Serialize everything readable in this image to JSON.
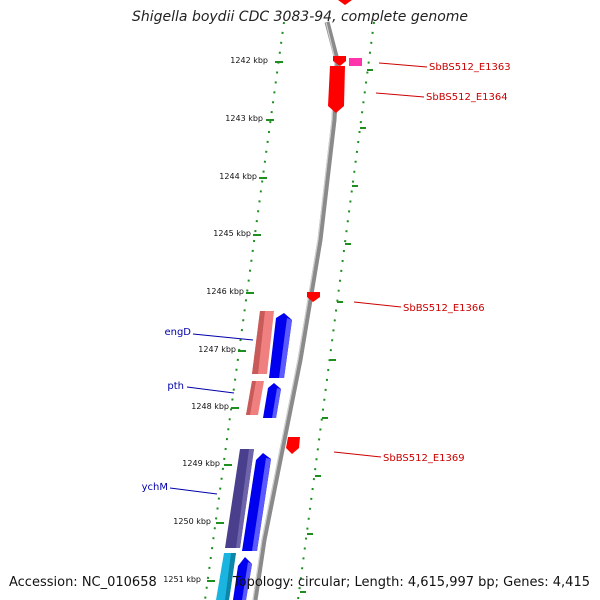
{
  "title": "Shigella boydii CDC 3083-94, complete genome",
  "accession_text": "Accession: NC_010658",
  "topology_text": "Topology: circular; Length: 4,615,997 bp; Genes: 4,415",
  "colors": {
    "backbone": "#8a8a8a",
    "grid_dots": "#1e8f1e",
    "forward_gene": "#0000ee",
    "reverse_gene": "#f08080",
    "rna_feature": "#ff0000",
    "pink_feature": "#ff33aa",
    "dark_gene": "#4a3f8c",
    "cyan_gene": "#19b5e0",
    "gene_label": "#0000aa",
    "feature_label": "#cc0000"
  },
  "ticks": [
    {
      "label": "1242 kbp"
    },
    {
      "label": "1243 kbp"
    },
    {
      "label": "1244 kbp"
    },
    {
      "label": "1245 kbp"
    },
    {
      "label": "1246 kbp"
    },
    {
      "label": "1247 kbp"
    },
    {
      "label": "1248 kbp"
    },
    {
      "label": "1249 kbp"
    },
    {
      "label": "1250 kbp"
    },
    {
      "label": "1251 kbp"
    }
  ],
  "gene_labels": [
    {
      "name": "engD"
    },
    {
      "name": "pth"
    },
    {
      "name": "ychM"
    }
  ],
  "feature_labels": [
    {
      "name": "SbBS512_E1363"
    },
    {
      "name": "SbBS512_E1364"
    },
    {
      "name": "SbBS512_E1366"
    },
    {
      "name": "SbBS512_E1369"
    }
  ]
}
